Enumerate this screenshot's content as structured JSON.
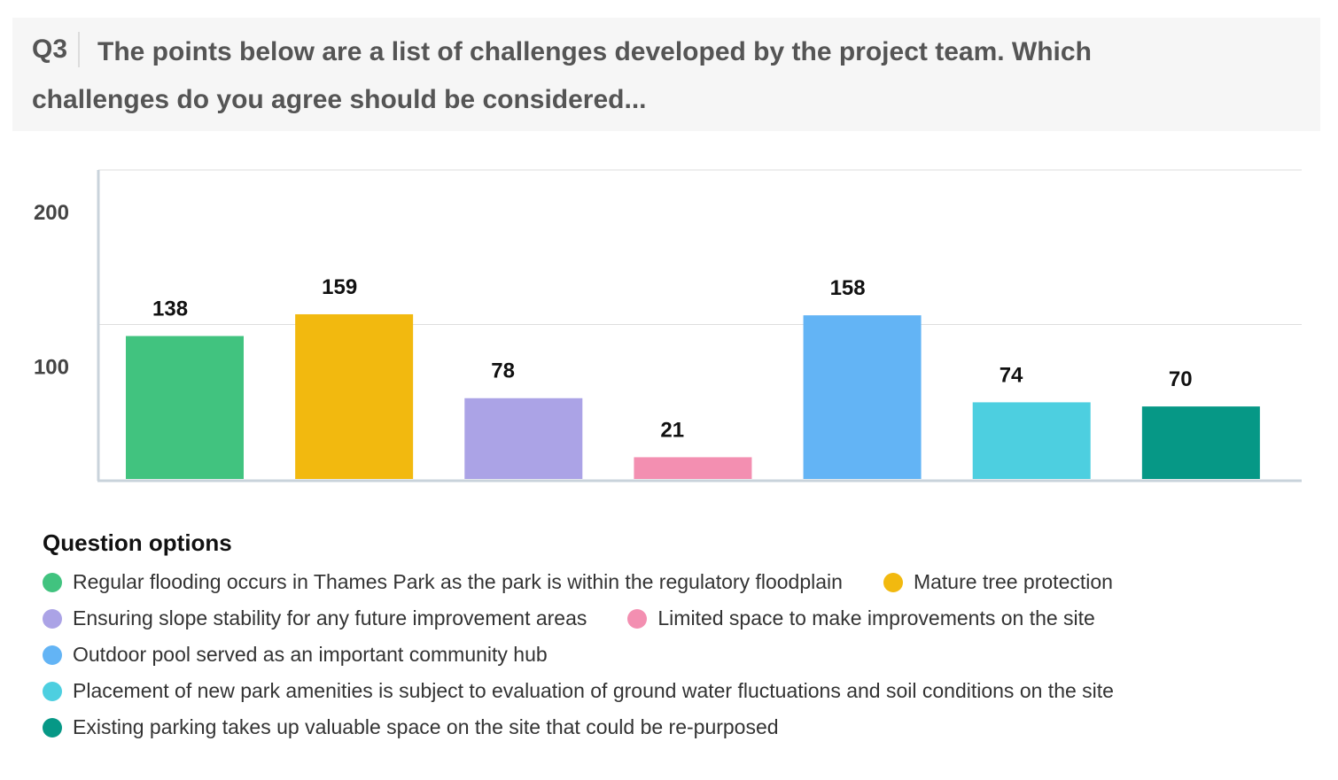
{
  "question": {
    "number": "Q3",
    "text": "The points below are a list of challenges developed by the project team. Which challenges do you agree should be considered..."
  },
  "chart_data": {
    "type": "bar",
    "categories": [
      "Regular flooding occurs in Thames Park as the park is within the regulatory floodplain",
      "Mature tree protection",
      "Ensuring slope stability for any future improvement areas",
      "Limited space to make improvements on the site",
      "Outdoor pool served as an important community hub",
      "Placement of new park amenities is subject to evaluation of ground water fluctuations and soil conditions on the site",
      "Existing parking takes up valuable space on the site that could be re-purposed"
    ],
    "values": [
      138,
      159,
      78,
      21,
      158,
      74,
      70
    ],
    "colors": [
      "#41c37f",
      "#f2b90f",
      "#aba3e6",
      "#f38fb1",
      "#63b4f5",
      "#4dcfe0",
      "#069886"
    ],
    "y_ticks": [
      "100",
      "200"
    ],
    "ylim": [
      0,
      200
    ],
    "grid": true,
    "legend_position": "bottom",
    "legend_title": "Question options"
  }
}
